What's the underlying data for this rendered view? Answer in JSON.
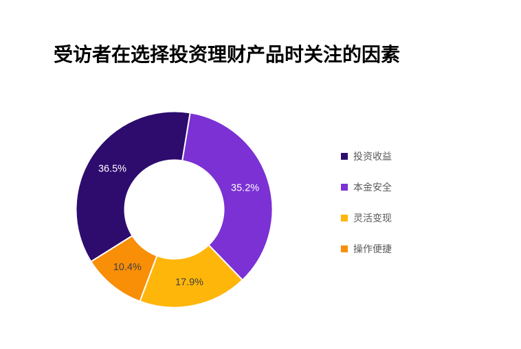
{
  "page": {
    "background": "#FFFFFF"
  },
  "header": {
    "title": "受访者在选择投资理财产品时关注的因素"
  },
  "chart_data": {
    "type": "pie",
    "subtype": "donut",
    "title": "受访者在选择投资理财产品时关注的因素",
    "categories": [
      "投资收益",
      "本金安全",
      "灵活变现",
      "操作便捷"
    ],
    "slugs": [
      "investment-returns",
      "principal-safety",
      "flexible-liquidation",
      "easy-operation"
    ],
    "values": [
      36.5,
      35.2,
      17.9,
      10.4
    ],
    "labels": [
      "36.5%",
      "35.2%",
      "17.9%",
      "10.4%"
    ],
    "colors": [
      "#2D0C6E",
      "#7B31D4",
      "#FFB60B",
      "#F98E07"
    ],
    "label_text_colors": [
      "#FFFFFF",
      "#FFFFFF",
      "#404040",
      "#404040"
    ],
    "legend": {
      "position": "right",
      "entries": [
        "投资收益",
        "本金安全",
        "灵活变现",
        "操作便捷"
      ],
      "text_color": "#595959"
    },
    "layout": {
      "start_angle_deg": 9.3,
      "direction": "clockwise",
      "draw_order": [
        1,
        2,
        3,
        0
      ],
      "inner_radius_ratio": 0.5,
      "slice_gap_color": "#FFFFFF",
      "grid": false
    }
  }
}
